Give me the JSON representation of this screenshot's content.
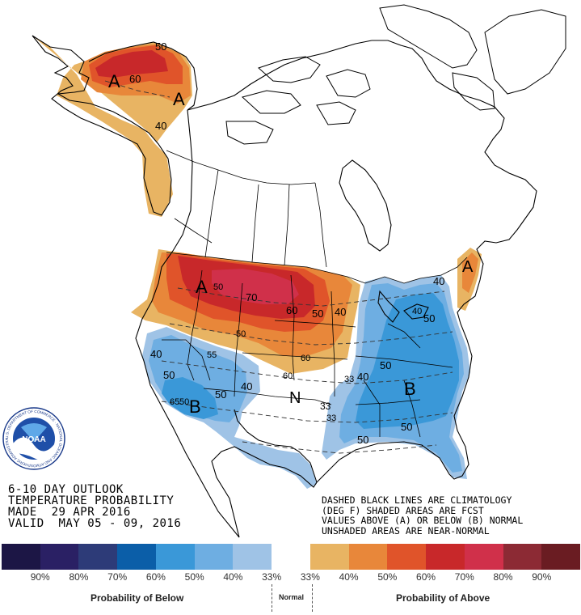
{
  "header": {
    "line1": "6-10 DAY OUTLOOK",
    "line2": "TEMPERATURE PROBABILITY",
    "line3": "MADE  29 APR 2016",
    "line4": "VALID  MAY 05 - 09, 2016"
  },
  "note": {
    "line1": "DASHED BLACK LINES ARE CLIMATOLOGY",
    "line2": "(DEG F) SHADED AREAS ARE FCST",
    "line3": "VALUES ABOVE (A) OR BELOW (B) NORMAL",
    "line4": "UNSHADED AREAS ARE NEAR-NORMAL"
  },
  "logo": {
    "text": "NOAA",
    "ring_text": "U.S. DEPARTMENT OF COMMERCE · NATIONAL OCEANIC AND ATMOSPHERIC ADMINISTRATION"
  },
  "map_labels": {
    "above": "A",
    "below": "B",
    "normal": "N",
    "contours": [
      "60",
      "50",
      "40",
      "70",
      "50",
      "60",
      "50",
      "50",
      "40",
      "60",
      "60",
      "55",
      "40",
      "50",
      "50",
      "65",
      "50",
      "40",
      "40",
      "50",
      "33",
      "33",
      "40",
      "50",
      "50",
      "40",
      "50",
      "33"
    ]
  },
  "legend": {
    "colors": [
      "#1c1645",
      "#2a2064",
      "#2d3b78",
      "#0b5ea8",
      "#3a98d8",
      "#6eaee2",
      "#9fc3e6",
      "#ffffff",
      "#e8b463",
      "#e8873a",
      "#e0542a",
      "#c8282a",
      "#d0304a",
      "#8c2a34",
      "#6a1c22"
    ],
    "ticks": [
      "90%",
      "80%",
      "70%",
      "60%",
      "50%",
      "40%",
      "33%",
      "33%",
      "40%",
      "50%",
      "60%",
      "70%",
      "80%",
      "90%"
    ],
    "below_label": "Probability of Below",
    "normal_label": "Normal",
    "above_label": "Probability of Above"
  }
}
